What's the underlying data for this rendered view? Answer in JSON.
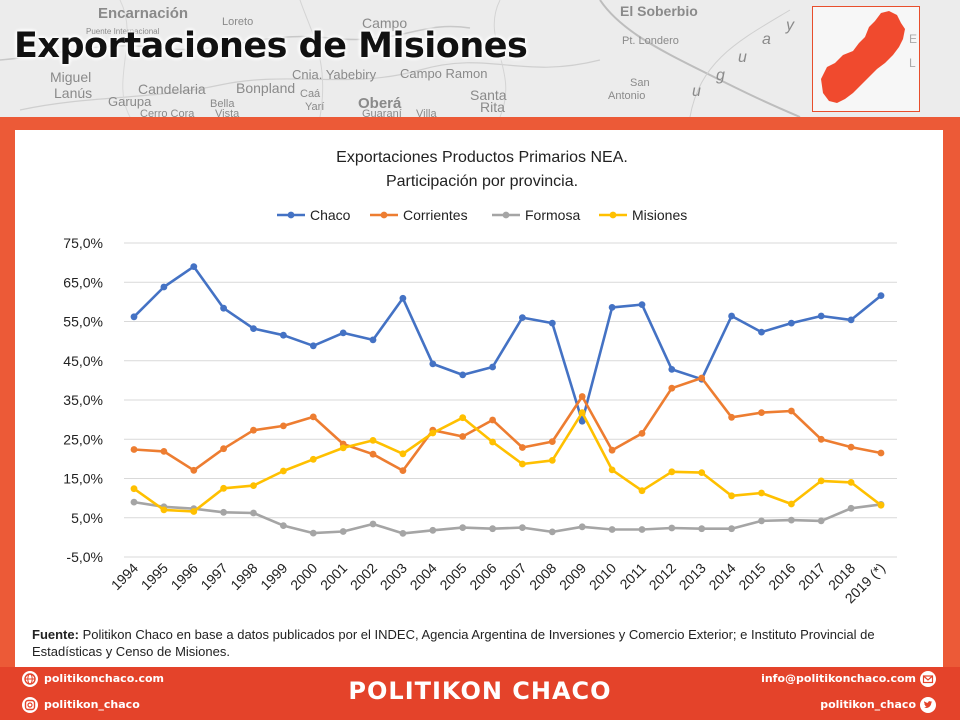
{
  "header": {
    "title": "Exportaciones de Misiones",
    "map_labels": [
      "Encarnación",
      "Loreto",
      "Campo",
      "El Soberbio",
      "Pt. Londero",
      "Miguel",
      "Lanús",
      "Candelaria",
      "Garupa",
      "Bella",
      "Vista",
      "Cerro Cora",
      "Bonpland",
      "Cnia. Yabebiry",
      "Caá",
      "Yarí",
      "Campo Ramon",
      "Oberá",
      "Guaraní",
      "Santa",
      "Rita",
      "Villa",
      "San",
      "Antonio",
      "Puente Internacional"
    ],
    "map_river_letters": [
      "u",
      "g",
      "u",
      "a",
      "y"
    ]
  },
  "chart_data": {
    "type": "line",
    "title_lines": [
      "Exportaciones Productos Primarios NEA.",
      "Participación por provincia."
    ],
    "categories": [
      "1994",
      "1995",
      "1996",
      "1997",
      "1998",
      "1999",
      "2000",
      "2001",
      "2002",
      "2003",
      "2004",
      "2005",
      "2006",
      "2007",
      "2008",
      "2009",
      "2010",
      "2011",
      "2012",
      "2013",
      "2014",
      "2015",
      "2016",
      "2017",
      "2018",
      "2019 (*)"
    ],
    "y_ticks": [
      "75,0%",
      "65,0%",
      "55,0%",
      "45,0%",
      "35,0%",
      "25,0%",
      "15,0%",
      "5,0%",
      "-5,0%"
    ],
    "ylim": [
      -5,
      75
    ],
    "grid": true,
    "legend_position": "top",
    "series": [
      {
        "name": "Chaco",
        "color": "#4472c4",
        "values": [
          56.2,
          63.8,
          69.0,
          58.4,
          53.2,
          51.5,
          48.8,
          52.1,
          50.3,
          60.9,
          44.2,
          41.4,
          43.4,
          56.0,
          54.6,
          29.6,
          58.6,
          59.3,
          42.8,
          40.3,
          56.4,
          52.3,
          54.6,
          56.4,
          55.4,
          61.6
        ]
      },
      {
        "name": "Corrientes",
        "color": "#ed7d31",
        "values": [
          22.4,
          21.9,
          17.1,
          22.6,
          27.3,
          28.4,
          30.7,
          23.8,
          21.2,
          17.0,
          27.3,
          25.7,
          29.9,
          22.9,
          24.4,
          35.9,
          22.2,
          26.5,
          38.0,
          40.6,
          30.6,
          31.8,
          32.2,
          25.0,
          23.0,
          21.5
        ]
      },
      {
        "name": "Formosa",
        "color": "#a5a5a5",
        "values": [
          9.0,
          7.8,
          7.3,
          6.4,
          6.2,
          3.0,
          1.1,
          1.5,
          3.4,
          1.0,
          1.8,
          2.5,
          2.2,
          2.5,
          1.4,
          2.7,
          2.0,
          2.0,
          2.4,
          2.2,
          2.2,
          4.2,
          4.4,
          4.2,
          7.4,
          8.4
        ]
      },
      {
        "name": "Misiones",
        "color": "#ffc000",
        "values": [
          12.4,
          7.0,
          6.6,
          12.5,
          13.2,
          16.9,
          19.9,
          22.8,
          24.7,
          21.3,
          26.6,
          30.5,
          24.3,
          18.7,
          19.6,
          31.8,
          17.2,
          11.9,
          16.7,
          16.5,
          10.6,
          11.3,
          8.5,
          14.4,
          14.0,
          8.2
        ]
      }
    ]
  },
  "source": {
    "label": "Fuente:",
    "text": " Politikon Chaco en base a datos publicados por el INDEC, Agencia Argentina de Inversiones y Comercio Exterior; e Instituto Provincial de Estadísticas y Censo de Misiones."
  },
  "footer": {
    "website": "politikonchaco.com",
    "instagram": "politikon_chaco",
    "brand": "POLITIKON CHACO",
    "email": "info@politikonchaco.com",
    "twitter": "politikon_chaco"
  },
  "colors": {
    "accent": "#ec5a37",
    "footer": "#e4432a",
    "province": "#f04a2e"
  }
}
